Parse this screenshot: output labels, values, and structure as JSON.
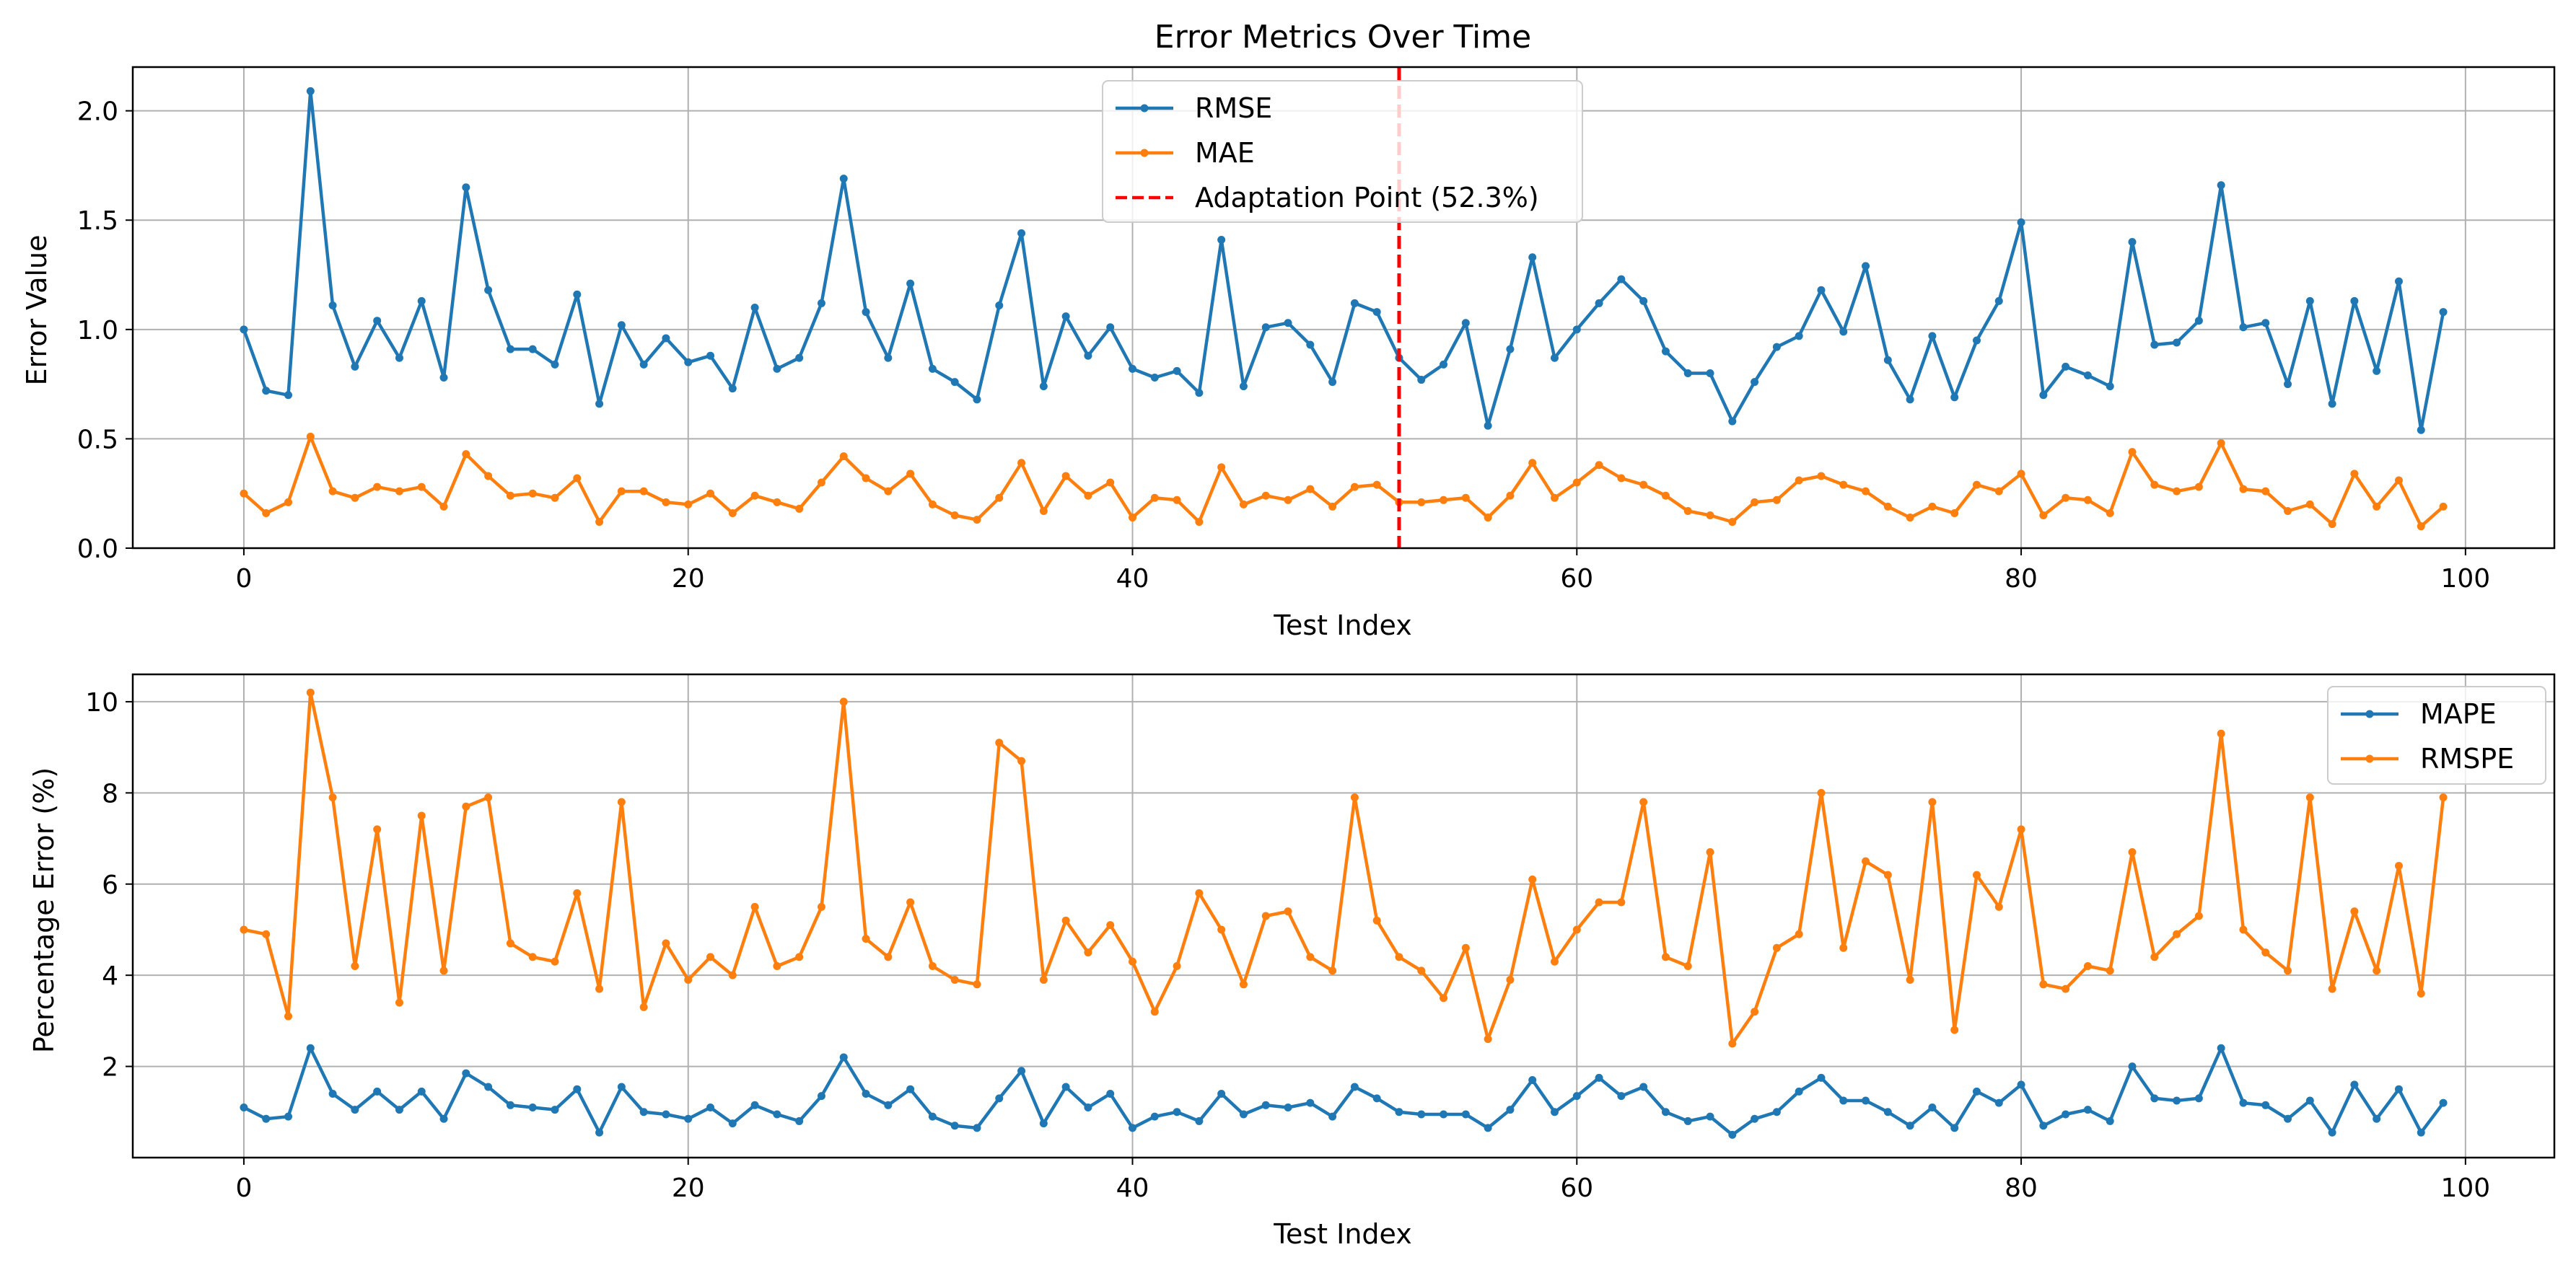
{
  "chart_data": [
    {
      "type": "line",
      "title": "Error Metrics Over Time",
      "xlabel": "Test Index",
      "ylabel": "Error Value",
      "xlim": [
        -5,
        104
      ],
      "ylim": [
        0,
        2.2
      ],
      "xticks": [
        0,
        20,
        40,
        60,
        80,
        100
      ],
      "yticks": [
        0.0,
        0.5,
        1.0,
        1.5,
        2.0
      ],
      "ytick_labels": [
        "0.0",
        "0.5",
        "1.0",
        "1.5",
        "2.0"
      ],
      "grid": true,
      "legend_position": "top-center",
      "series": [
        {
          "name": "RMSE",
          "color": "#1f77b4",
          "values": [
            1.0,
            0.72,
            0.7,
            2.09,
            1.11,
            0.83,
            1.04,
            0.87,
            1.13,
            0.78,
            1.65,
            1.18,
            0.91,
            0.91,
            0.84,
            1.16,
            0.66,
            1.02,
            0.84,
            0.96,
            0.85,
            0.88,
            0.73,
            1.1,
            0.82,
            0.87,
            1.12,
            1.69,
            1.08,
            0.87,
            1.21,
            0.82,
            0.76,
            0.68,
            1.11,
            1.44,
            0.74,
            1.06,
            0.88,
            1.01,
            0.82,
            0.78,
            0.81,
            0.71,
            1.41,
            0.74,
            1.01,
            1.03,
            0.93,
            0.76,
            1.12,
            1.08,
            0.87,
            0.77,
            0.84,
            1.03,
            0.56,
            0.91,
            1.33,
            0.87,
            1.0,
            1.12,
            1.23,
            1.13,
            0.9,
            0.8,
            0.8,
            0.58,
            0.76,
            0.92,
            0.97,
            1.18,
            0.99,
            1.29,
            0.86,
            0.68,
            0.97,
            0.69,
            0.95,
            1.13,
            1.49,
            0.7,
            0.83,
            0.79,
            0.74,
            1.4,
            0.93,
            0.94,
            1.04,
            1.66,
            1.01,
            1.03,
            0.75,
            1.13,
            0.66,
            1.13,
            0.81,
            1.22,
            0.54,
            1.08
          ]
        },
        {
          "name": "MAE",
          "color": "#ff7f0e",
          "values": [
            0.25,
            0.16,
            0.21,
            0.51,
            0.26,
            0.23,
            0.28,
            0.26,
            0.28,
            0.19,
            0.43,
            0.33,
            0.24,
            0.25,
            0.23,
            0.32,
            0.12,
            0.26,
            0.26,
            0.21,
            0.2,
            0.25,
            0.16,
            0.24,
            0.21,
            0.18,
            0.3,
            0.42,
            0.32,
            0.26,
            0.34,
            0.2,
            0.15,
            0.13,
            0.23,
            0.39,
            0.17,
            0.33,
            0.24,
            0.3,
            0.14,
            0.23,
            0.22,
            0.12,
            0.37,
            0.2,
            0.24,
            0.22,
            0.27,
            0.19,
            0.28,
            0.29,
            0.21,
            0.21,
            0.22,
            0.23,
            0.14,
            0.24,
            0.39,
            0.23,
            0.3,
            0.38,
            0.32,
            0.29,
            0.24,
            0.17,
            0.15,
            0.12,
            0.21,
            0.22,
            0.31,
            0.33,
            0.29,
            0.26,
            0.19,
            0.14,
            0.19,
            0.16,
            0.29,
            0.26,
            0.34,
            0.15,
            0.23,
            0.22,
            0.16,
            0.44,
            0.29,
            0.26,
            0.28,
            0.48,
            0.27,
            0.26,
            0.17,
            0.2,
            0.11,
            0.34,
            0.19,
            0.31,
            0.1,
            0.19
          ]
        }
      ],
      "vline": {
        "x": 52,
        "label": "Adaptation Point (52.3%)",
        "color": "#ff0000",
        "style": "dashed"
      }
    },
    {
      "type": "line",
      "title": "",
      "xlabel": "Test Index",
      "ylabel": "Percentage Error (%)",
      "xlim": [
        -5,
        104
      ],
      "ylim": [
        0,
        10.6
      ],
      "xticks": [
        0,
        20,
        40,
        60,
        80,
        100
      ],
      "yticks": [
        2,
        4,
        6,
        8,
        10
      ],
      "ytick_labels": [
        "2",
        "4",
        "6",
        "8",
        "10"
      ],
      "grid": true,
      "legend_position": "top-right",
      "series": [
        {
          "name": "MAPE",
          "color": "#1f77b4",
          "values": [
            1.1,
            0.85,
            0.9,
            2.4,
            1.4,
            1.05,
            1.45,
            1.05,
            1.45,
            0.85,
            1.85,
            1.55,
            1.15,
            1.1,
            1.05,
            1.5,
            0.55,
            1.55,
            1.0,
            0.95,
            0.85,
            1.1,
            0.75,
            1.15,
            0.95,
            0.8,
            1.35,
            2.2,
            1.4,
            1.15,
            1.5,
            0.9,
            0.7,
            0.65,
            1.3,
            1.9,
            0.75,
            1.55,
            1.1,
            1.4,
            0.65,
            0.9,
            1.0,
            0.8,
            1.4,
            0.95,
            1.15,
            1.1,
            1.2,
            0.9,
            1.55,
            1.3,
            1.0,
            0.95,
            0.95,
            0.95,
            0.65,
            1.05,
            1.7,
            1.0,
            1.35,
            1.75,
            1.35,
            1.55,
            1.0,
            0.8,
            0.9,
            0.5,
            0.85,
            1.0,
            1.45,
            1.75,
            1.25,
            1.25,
            1.0,
            0.7,
            1.1,
            0.65,
            1.45,
            1.2,
            1.6,
            0.7,
            0.95,
            1.05,
            0.8,
            2.0,
            1.3,
            1.25,
            1.3,
            2.4,
            1.2,
            1.15,
            0.85,
            1.25,
            0.55,
            1.6,
            0.85,
            1.5,
            0.55,
            1.2
          ]
        },
        {
          "name": "RMSPE",
          "color": "#ff7f0e",
          "values": [
            5.0,
            4.9,
            3.1,
            10.2,
            7.9,
            4.2,
            7.2,
            3.4,
            7.5,
            4.1,
            7.7,
            7.9,
            4.7,
            4.4,
            4.3,
            5.8,
            3.7,
            7.8,
            3.3,
            4.7,
            3.9,
            4.4,
            4.0,
            5.5,
            4.2,
            4.4,
            5.5,
            10.0,
            4.8,
            4.4,
            5.6,
            4.2,
            3.9,
            3.8,
            9.1,
            8.7,
            3.9,
            5.2,
            4.5,
            5.1,
            4.3,
            3.2,
            4.2,
            5.8,
            5.0,
            3.8,
            5.3,
            5.4,
            4.4,
            4.1,
            7.9,
            5.2,
            4.4,
            4.1,
            3.5,
            4.6,
            2.6,
            3.9,
            6.1,
            4.3,
            5.0,
            5.6,
            5.6,
            7.8,
            4.4,
            4.2,
            6.7,
            2.5,
            3.2,
            4.6,
            4.9,
            8.0,
            4.6,
            6.5,
            6.2,
            3.9,
            7.8,
            2.8,
            6.2,
            5.5,
            7.2,
            3.8,
            3.7,
            4.2,
            4.1,
            6.7,
            4.4,
            4.9,
            5.3,
            9.3,
            5.0,
            4.5,
            4.1,
            7.9,
            3.7,
            5.4,
            4.1,
            6.4,
            3.6,
            7.9
          ]
        }
      ]
    }
  ]
}
